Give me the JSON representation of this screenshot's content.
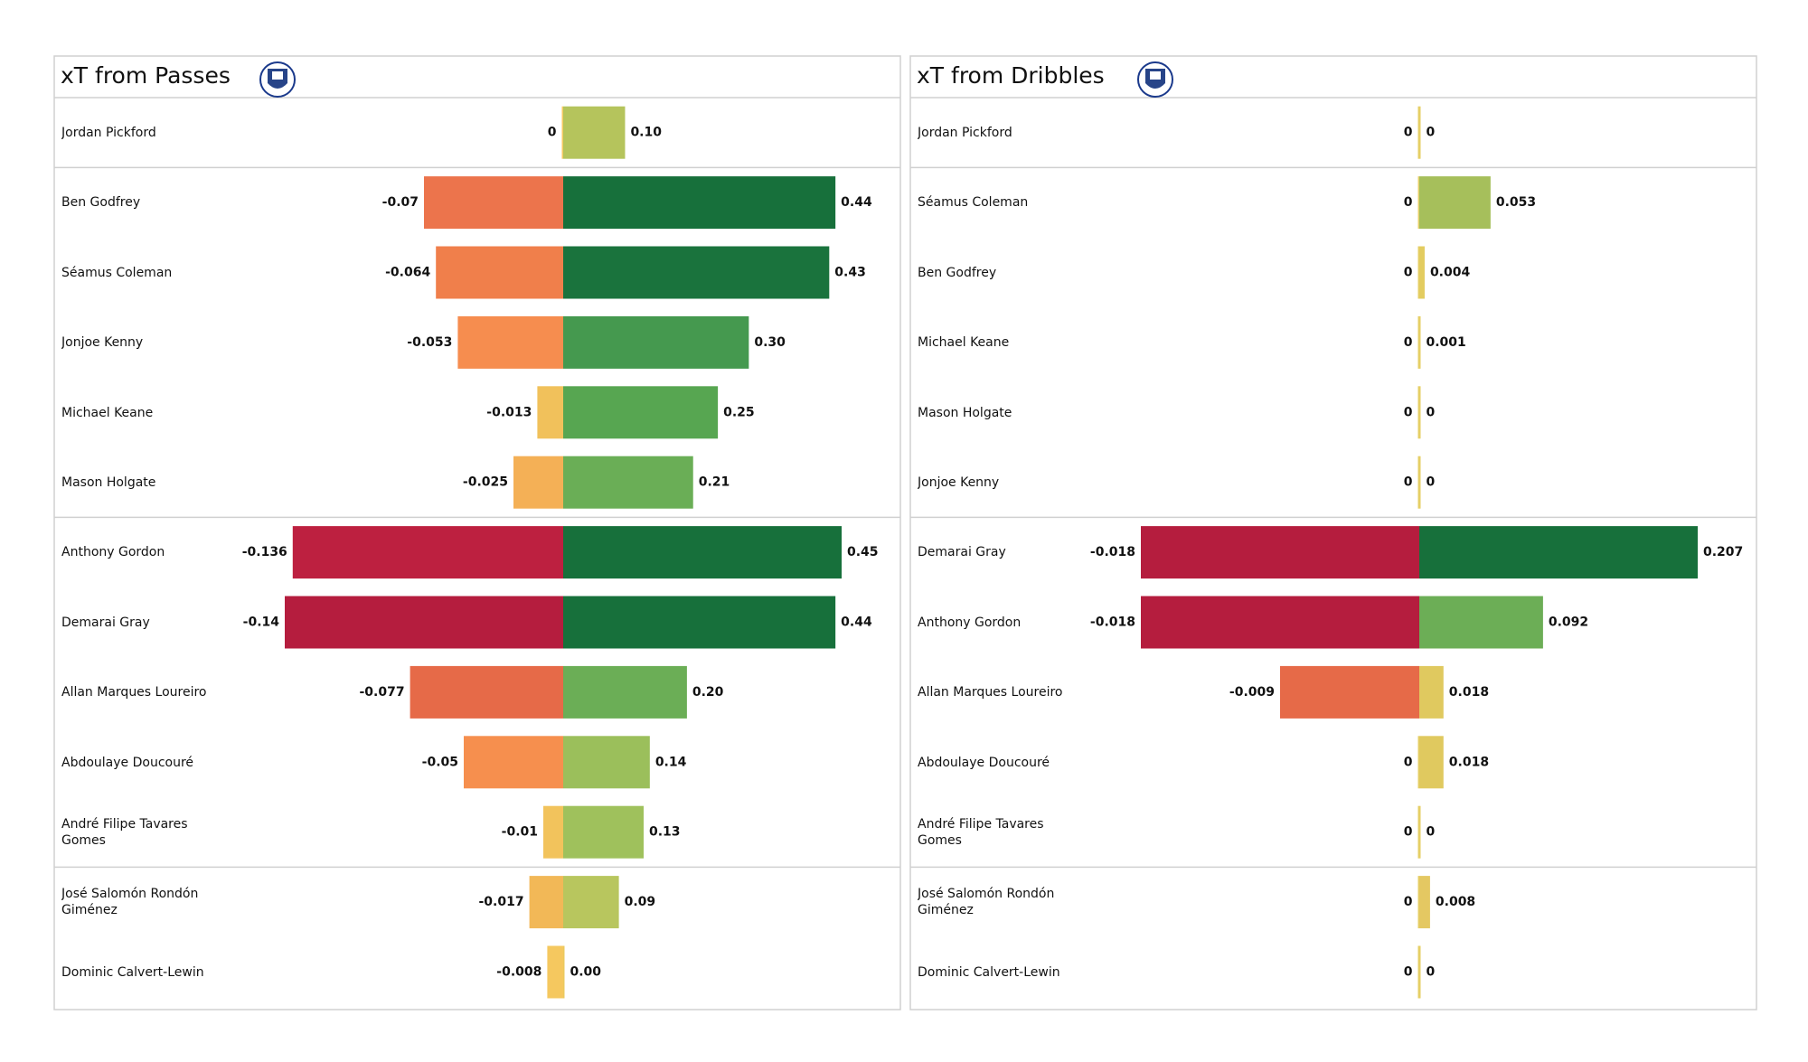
{
  "chart_data": [
    {
      "type": "bar",
      "title": "xT from Passes",
      "categories": [
        "Jordan Pickford",
        "Ben Godfrey",
        "Séamus Coleman",
        "Jonjoe Kenny",
        "Michael Keane",
        "Mason Holgate",
        "Anthony Gordon",
        "Demarai Gray",
        "Allan Marques Loureiro",
        "Abdoulaye Doucouré",
        "André Filipe Tavares Gomes",
        "José Salomón Rondón Giménez",
        "Dominic Calvert-Lewin"
      ],
      "xlim": [
        -0.14,
        0.45
      ],
      "series": [
        {
          "values": [
            0,
            -0.07,
            -0.064,
            -0.053,
            -0.013,
            -0.025,
            -0.136,
            -0.14,
            -0.077,
            -0.05,
            -0.01,
            -0.017,
            -0.008
          ],
          "colors": [
            "#f5c85f",
            "#ec744c",
            "#f07f4b",
            "#f68d4f",
            "#f1c15b",
            "#f4b056",
            "#bd2040",
            "#b51d3e",
            "#e66a48",
            "#f68f4e",
            "#f2c35c",
            "#f2b857",
            "#f5c85f"
          ]
        },
        {
          "values": [
            0.1,
            0.44,
            0.43,
            0.3,
            0.25,
            0.21,
            0.45,
            0.44,
            0.2,
            0.14,
            0.13,
            0.09,
            0
          ],
          "value_labels": [
            "0.10",
            "0.44",
            "0.43",
            "0.30",
            "0.25",
            "0.21",
            "0.45",
            "0.44",
            "0.20",
            "0.14",
            "0.13",
            "0.09",
            "0.00"
          ],
          "colors": [
            "#b5c45c",
            "#17703b",
            "#1a733d",
            "#45994f",
            "#57a651",
            "#6aae56",
            "#17703b",
            "#17703b",
            "#6bae56",
            "#9bbf5b",
            "#9fc15c",
            "#b8c65e",
            "#ecca5f"
          ]
        }
      ]
    },
    {
      "type": "bar",
      "title": "xT from Dribbles",
      "categories": [
        "Jordan Pickford",
        "Séamus Coleman",
        "Ben Godfrey",
        "Michael Keane",
        "Mason Holgate",
        "Jonjoe Kenny",
        "Demarai Gray",
        "Anthony Gordon",
        "Allan Marques Loureiro",
        "Abdoulaye Doucouré",
        "André Filipe Tavares Gomes",
        "José Salomón Rondón Giménez",
        "Dominic Calvert-Lewin"
      ],
      "xlim": [
        -0.018,
        0.207
      ],
      "series": [
        {
          "values": [
            0,
            0,
            0,
            0,
            0,
            0,
            -0.018,
            -0.018,
            -0.009,
            0,
            0,
            0,
            0
          ],
          "colors": [
            "#e6cf66",
            "#e6cf66",
            "#e6cf66",
            "#e6cf66",
            "#e6cf66",
            "#e6cf66",
            "#b51d3e",
            "#b51d3e",
            "#e66a48",
            "#e6cf66",
            "#e6cf66",
            "#e6cf66",
            "#e6cf66"
          ]
        },
        {
          "values": [
            0,
            0.053,
            0.004,
            0.001,
            0,
            0,
            0.207,
            0.092,
            0.018,
            0.018,
            0,
            0.008,
            0
          ],
          "colors": [
            "#e6cf66",
            "#a6bf5b",
            "#e3cc60",
            "#e6cf66",
            "#e6cf66",
            "#e6cf66",
            "#17703b",
            "#6cae56",
            "#e0c95f",
            "#e0c95f",
            "#e6cf66",
            "#e4c862",
            "#e6cf66"
          ]
        }
      ]
    }
  ]
}
